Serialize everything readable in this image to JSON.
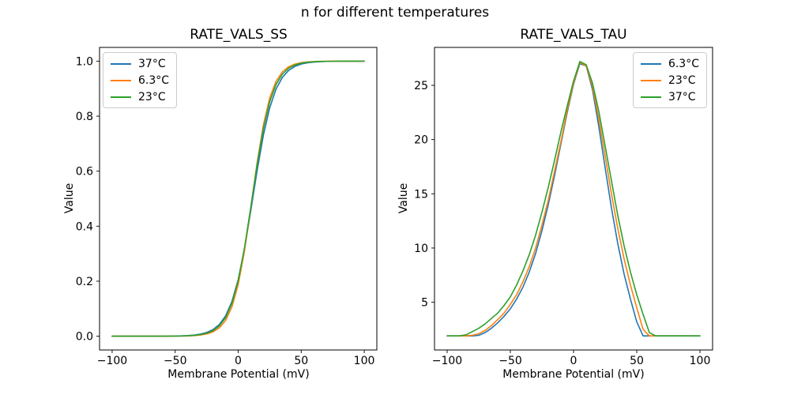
{
  "figure": {
    "suptitle": "n for different temperatures",
    "background": "#ffffff",
    "spine_color": "#000000",
    "text_color": "#000000"
  },
  "chart_data": [
    {
      "type": "line",
      "title": "RATE_VALS_SS",
      "xlabel": "Membrane Potential (mV)",
      "ylabel": "Value",
      "grid": false,
      "legend_position": "upper-left",
      "xlim": [
        -110,
        110
      ],
      "ylim": [
        -0.05,
        1.05
      ],
      "xtick_values": [
        -100,
        -50,
        0,
        50,
        100
      ],
      "xtick_labels": [
        "−100",
        "−50",
        "0",
        "50",
        "100"
      ],
      "ytick_values": [
        0.0,
        0.2,
        0.4,
        0.6,
        0.8,
        1.0
      ],
      "ytick_labels": [
        "0.0",
        "0.2",
        "0.4",
        "0.6",
        "0.8",
        "1.0"
      ],
      "x": [
        -100,
        -95,
        -90,
        -85,
        -80,
        -75,
        -70,
        -65,
        -60,
        -55,
        -50,
        -45,
        -40,
        -35,
        -30,
        -25,
        -20,
        -15,
        -10,
        -5,
        0,
        5,
        10,
        15,
        20,
        25,
        30,
        35,
        40,
        45,
        50,
        55,
        60,
        65,
        70,
        75,
        80,
        85,
        90,
        95,
        100
      ],
      "series": [
        {
          "name": "37°C",
          "color": "#1f77b4",
          "values": [
            0,
            0,
            0,
            0,
            0,
            0,
            0.0001,
            0.0001,
            0.0002,
            0.0004,
            0.0007,
            0.0013,
            0.0023,
            0.0042,
            0.0076,
            0.0135,
            0.0239,
            0.0424,
            0.0738,
            0.1257,
            0.2054,
            0.3176,
            0.4561,
            0.6016,
            0.7311,
            0.8304,
            0.898,
            0.9407,
            0.9662,
            0.9809,
            0.9893,
            0.994,
            0.9967,
            0.9982,
            0.999,
            0.9994,
            0.9997,
            0.9998,
            0.9999,
            0.9999,
            1.0
          ]
        },
        {
          "name": "6.3°C",
          "color": "#ff7f0e",
          "values": [
            0,
            0,
            0,
            0,
            0,
            0,
            0,
            0,
            0.0001,
            0.0002,
            0.0003,
            0.0006,
            0.0011,
            0.0022,
            0.0042,
            0.0082,
            0.0158,
            0.0302,
            0.0573,
            0.1059,
            0.1874,
            0.31,
            0.4668,
            0.6302,
            0.7685,
            0.8661,
            0.9264,
            0.9608,
            0.9795,
            0.9894,
            0.9945,
            0.9972,
            0.9985,
            0.9992,
            0.9996,
            0.9998,
            0.9999,
            0.9999,
            1.0,
            1.0,
            1.0
          ]
        },
        {
          "name": "23°C",
          "color": "#2ca02c",
          "values": [
            0,
            0,
            0,
            0,
            0,
            0,
            0,
            0.0001,
            0.0001,
            0.0003,
            0.0005,
            0.0009,
            0.0017,
            0.0032,
            0.0059,
            0.011,
            0.0204,
            0.0374,
            0.0675,
            0.1192,
            0.2018,
            0.3208,
            0.4688,
            0.6225,
            0.7549,
            0.852,
            0.9149,
            0.9526,
            0.9741,
            0.9859,
            0.9924,
            0.9959,
            0.9978,
            0.9988,
            0.9994,
            0.9997,
            0.9998,
            0.9999,
            0.9999,
            1.0,
            1.0
          ]
        }
      ]
    },
    {
      "type": "line",
      "title": "RATE_VALS_TAU",
      "xlabel": "Membrane Potential (mV)",
      "ylabel": "Value",
      "grid": false,
      "legend_position": "upper-right",
      "xlim": [
        -110,
        110
      ],
      "ylim": [
        0.6,
        28.5
      ],
      "xtick_values": [
        -100,
        -50,
        0,
        50,
        100
      ],
      "xtick_labels": [
        "−100",
        "−50",
        "0",
        "50",
        "100"
      ],
      "ytick_values": [
        5,
        10,
        15,
        20,
        25
      ],
      "ytick_labels": [
        "5",
        "10",
        "15",
        "20",
        "25"
      ],
      "x": [
        -100,
        -95,
        -90,
        -85,
        -80,
        -75,
        -70,
        -65,
        -60,
        -55,
        -50,
        -45,
        -40,
        -35,
        -30,
        -25,
        -20,
        -15,
        -10,
        -5,
        0,
        5,
        10,
        15,
        20,
        25,
        30,
        35,
        40,
        45,
        50,
        55,
        60,
        65,
        70,
        75,
        80,
        85,
        90,
        95,
        100
      ],
      "series": [
        {
          "name": "6.3°C",
          "color": "#1f77b4",
          "values": [
            1.9,
            1.9,
            1.9,
            1.9,
            1.9,
            1.95,
            2.2,
            2.6,
            3.1,
            3.7,
            4.4,
            5.3,
            6.4,
            7.8,
            9.5,
            11.6,
            14.0,
            16.7,
            19.6,
            22.5,
            25.1,
            27.0,
            26.8,
            24.6,
            21.2,
            17.4,
            13.7,
            10.4,
            7.6,
            5.3,
            3.2,
            1.9,
            1.9,
            1.9,
            1.9,
            1.9,
            1.9,
            1.9,
            1.9,
            1.9,
            1.9
          ]
        },
        {
          "name": "23°C",
          "color": "#ff7f0e",
          "values": [
            1.9,
            1.9,
            1.9,
            1.9,
            1.95,
            2.1,
            2.4,
            2.85,
            3.4,
            4.0,
            4.8,
            5.7,
            6.9,
            8.3,
            10.0,
            12.1,
            14.4,
            17.1,
            19.8,
            22.7,
            25.2,
            27.1,
            26.8,
            24.9,
            21.9,
            18.5,
            15.0,
            11.8,
            9.0,
            6.6,
            4.5,
            2.5,
            1.9,
            1.9,
            1.9,
            1.9,
            1.9,
            1.9,
            1.9,
            1.9,
            1.9
          ]
        },
        {
          "name": "37°C",
          "color": "#2ca02c",
          "values": [
            1.9,
            1.9,
            1.9,
            2.0,
            2.3,
            2.6,
            3.0,
            3.5,
            4.0,
            4.7,
            5.5,
            6.6,
            7.9,
            9.4,
            11.2,
            13.3,
            15.6,
            18.1,
            20.7,
            23.1,
            25.4,
            27.2,
            26.9,
            25.2,
            22.6,
            19.4,
            16.2,
            13.0,
            10.2,
            7.8,
            5.7,
            3.9,
            2.2,
            1.9,
            1.9,
            1.9,
            1.9,
            1.9,
            1.9,
            1.9,
            1.9
          ]
        }
      ]
    }
  ]
}
